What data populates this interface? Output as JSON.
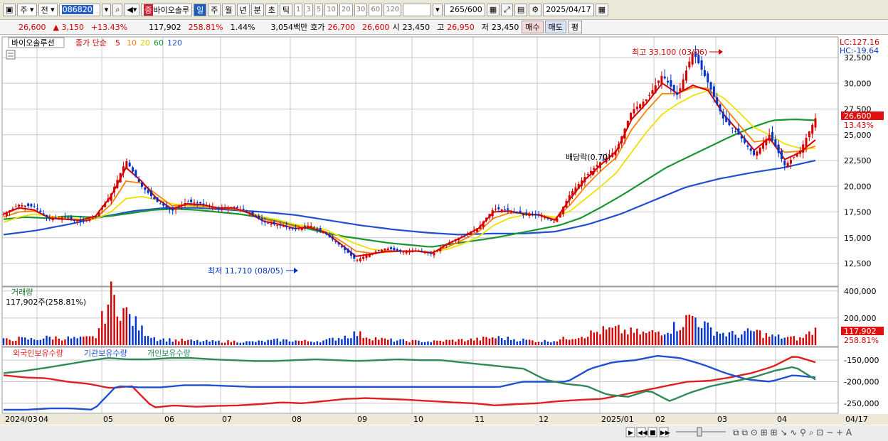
{
  "toolbar": {
    "market": "주",
    "prefix": "전",
    "code": "086820",
    "name_mark": "증",
    "name": "바이오솔루",
    "periods": [
      "일",
      "주",
      "월",
      "년",
      "분",
      "초",
      "틱"
    ],
    "intervals": [
      "1",
      "3",
      "5",
      "10",
      "20",
      "30",
      "60",
      "120"
    ],
    "count": "265",
    "count_max": "/600",
    "date": "2025/04/17"
  },
  "quote": {
    "price": "26,600",
    "change": "▲ 3,150",
    "change_pct": "+13.43%",
    "volume": "117,902",
    "volume_pct": "258.81%",
    "turnover": "1.44%",
    "amount": "3,054백만",
    "ask_label": "호가",
    "ask": "26,700",
    "bid": "26,600",
    "open_label": "시",
    "open": "23,450",
    "high_label": "고",
    "high": "26,950",
    "low_label": "저",
    "low": "23,450",
    "buy_label": "매수",
    "sell_label": "매도",
    "eval_label": "평"
  },
  "colors": {
    "up": "#d40000",
    "down": "#0033cc",
    "ma5": "#d40000",
    "ma10": "#ff8000",
    "ma20": "#f0e000",
    "ma60": "#1a9630",
    "ma120": "#2050d0",
    "foreign": "#e02020",
    "institution": "#2050d0",
    "individual": "#2e8b57"
  },
  "chart_data": [
    {
      "type": "candlestick",
      "title": "바이오솔루션",
      "legend": [
        "종가 단순",
        "5",
        "10",
        "20",
        "60",
        "120"
      ],
      "ylim": [
        10500,
        34500
      ],
      "y_ticks": [
        12500,
        15000,
        17500,
        20000,
        22500,
        25000,
        27500,
        30000,
        32500
      ],
      "y_tick_labels": [
        "12,500",
        "15,000",
        "17,500",
        "20,000",
        "22,500",
        "25,000",
        "27,500",
        "30,000",
        "32,500"
      ],
      "x_labels": [
        "2024/03",
        "04",
        "05",
        "06",
        "07",
        "08",
        "09",
        "10",
        "11",
        "12",
        "2025/01",
        "02",
        "03",
        "04",
        "04/17"
      ],
      "corner_high": "LC:127.16",
      "corner_low": "HC:-19.64",
      "last_price_label": "26,600",
      "last_change_label": "13.43%",
      "annotations": [
        {
          "text": "최고 33,100 (03/06)",
          "value": 33100
        },
        {
          "text": "최저 11,710 (08/05)",
          "value": 11710
        },
        {
          "text": "배당락(0.70)"
        }
      ],
      "close_path": [
        17300,
        18200,
        18000,
        16800,
        17000,
        16500,
        17000,
        19200,
        22500,
        20000,
        18500,
        17600,
        18500,
        18300,
        17800,
        18000,
        17500,
        16500,
        16200,
        15800,
        16200,
        15400,
        14200,
        12800,
        13500,
        14000,
        13600,
        13800,
        13400,
        14500,
        15200,
        16000,
        17800,
        17700,
        17200,
        17200,
        16500,
        19300,
        21000,
        22400,
        23500,
        27300,
        28500,
        30800,
        28800,
        33100,
        30000,
        26500,
        25000,
        23000,
        25000,
        22000,
        23450,
        26600
      ],
      "ma5_path": [
        17300,
        17900,
        17700,
        16900,
        16800,
        16700,
        17100,
        19000,
        21800,
        20500,
        18800,
        17800,
        18300,
        18200,
        17900,
        17900,
        17400,
        16600,
        16300,
        15900,
        16000,
        15500,
        14400,
        13200,
        13400,
        13700,
        13700,
        13700,
        13500,
        14400,
        15100,
        15900,
        17500,
        17600,
        17300,
        17200,
        16700,
        18800,
        20700,
        22100,
        23400,
        26500,
        28100,
        30000,
        29000,
        29800,
        29300,
        27000,
        25300,
        23500,
        24700,
        22600,
        23300,
        24500
      ],
      "ma10_path": [
        17000,
        17500,
        17600,
        17000,
        16800,
        16700,
        16900,
        18200,
        20500,
        20300,
        19200,
        18100,
        18200,
        18100,
        17900,
        17800,
        17500,
        16800,
        16500,
        16100,
        16000,
        15600,
        14700,
        13700,
        13500,
        13600,
        13700,
        13700,
        13600,
        14100,
        14800,
        15600,
        16900,
        17400,
        17400,
        17200,
        16800,
        18200,
        20000,
        21500,
        22800,
        25500,
        27400,
        29000,
        29000,
        29600,
        29500,
        27800,
        26000,
        24300,
        24500,
        23300,
        23400,
        23900
      ],
      "ma20_path": [
        16500,
        17000,
        17300,
        17100,
        16900,
        16800,
        16800,
        17500,
        18800,
        19000,
        18700,
        18300,
        18100,
        18000,
        17900,
        17800,
        17500,
        17000,
        16700,
        16300,
        16100,
        15800,
        15100,
        14400,
        13900,
        13700,
        13700,
        13700,
        13600,
        13900,
        14400,
        15100,
        16200,
        16900,
        17200,
        17200,
        17000,
        17600,
        18800,
        20000,
        21300,
        23300,
        25300,
        27000,
        28000,
        28800,
        29300,
        28600,
        27200,
        25700,
        25000,
        24100,
        23700,
        23700
      ],
      "ma60_path": [
        16800,
        17000,
        16900,
        17100,
        17000,
        17100,
        17400,
        17700,
        17800,
        17700,
        17500,
        17300,
        17000,
        16500,
        16000,
        15500,
        15100,
        14800,
        14500,
        14300,
        14100,
        14400,
        14700,
        15000,
        15400,
        15800,
        16200,
        16900,
        18000,
        19200,
        20500,
        21800,
        22800,
        23800,
        24800,
        25700,
        26400,
        26500,
        26400
      ],
      "ma120_path": [
        15300,
        15700,
        16300,
        17000,
        17600,
        17900,
        17900,
        17700,
        17500,
        17200,
        16700,
        16200,
        15800,
        15500,
        15300,
        15400,
        15400,
        15600,
        16300,
        17300,
        18600,
        19900,
        20700,
        21300,
        21800,
        22500
      ]
    },
    {
      "type": "bar",
      "title": "거래량",
      "readout": "117,902주(258.81%)",
      "ylim": [
        0,
        420000
      ],
      "y_ticks": [
        200000,
        400000
      ],
      "y_tick_labels": [
        "200,000",
        "400,000"
      ],
      "last_volume_label": "117,902",
      "last_pct_label": "258.81%",
      "values": [
        40000,
        50000,
        45000,
        60000,
        55000,
        50000,
        60000,
        380000,
        250000,
        120000,
        50000,
        40000,
        35000,
        30000,
        28000,
        30000,
        25000,
        30000,
        40000,
        35000,
        30000,
        35000,
        60000,
        90000,
        60000,
        40000,
        35000,
        30000,
        28000,
        35000,
        40000,
        45000,
        60000,
        50000,
        40000,
        30000,
        35000,
        60000,
        80000,
        110000,
        120000,
        100000,
        90000,
        110000,
        150000,
        230000,
        130000,
        90000,
        80000,
        110000,
        70000,
        60000,
        50000,
        117902
      ]
    },
    {
      "type": "line",
      "legend": [
        "외국인보유수량",
        "기관보유수량",
        "개인보유수량"
      ],
      "ylim": [
        -270000,
        -125000
      ],
      "y_ticks": [
        -150000,
        -200000,
        -250000
      ],
      "y_tick_labels": [
        "-150,000",
        "-200,000",
        "-250,000"
      ],
      "series": [
        {
          "name": "외국인보유수량",
          "values": [
            -185000,
            -190000,
            -192000,
            -200000,
            -205000,
            -215000,
            -210000,
            -260000,
            -255000,
            -258000,
            -256000,
            -255000,
            -252000,
            -248000,
            -250000,
            -245000,
            -240000,
            -238000,
            -240000,
            -242000,
            -245000,
            -248000,
            -250000,
            -255000,
            -252000,
            -250000,
            -245000,
            -242000,
            -240000,
            -230000,
            -220000,
            -210000,
            -200000,
            -198000,
            -190000,
            -180000,
            -165000,
            -140000,
            -155000
          ]
        },
        {
          "name": "기관보유수량",
          "values": [
            -265000,
            -265000,
            -262000,
            -262000,
            -265000,
            -210000,
            -213000,
            -213000,
            -208000,
            -208000,
            -210000,
            -212000,
            -212000,
            -212000,
            -212000,
            -212000,
            -212000,
            -212000,
            -212000,
            -212000,
            -212000,
            -212000,
            -212000,
            -200000,
            -200000,
            -200000,
            -170000,
            -155000,
            -150000,
            -140000,
            -145000,
            -160000,
            -180000,
            -195000,
            -200000,
            -185000,
            -190000
          ]
        },
        {
          "name": "개인보유수량",
          "values": [
            -180000,
            -175000,
            -168000,
            -160000,
            -152000,
            -145000,
            -148000,
            -148000,
            -145000,
            -145000,
            -148000,
            -150000,
            -152000,
            -152000,
            -150000,
            -148000,
            -150000,
            -152000,
            -150000,
            -148000,
            -150000,
            -150000,
            -155000,
            -160000,
            -165000,
            -170000,
            -195000,
            -205000,
            -210000,
            -230000,
            -235000,
            -220000,
            -245000,
            -225000,
            -210000,
            -200000,
            -190000,
            -175000,
            -165000,
            -195000
          ]
        }
      ]
    }
  ]
}
